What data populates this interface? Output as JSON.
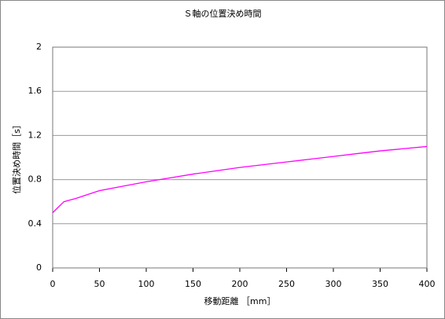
{
  "chart_data": {
    "type": "line",
    "title": "Ｓ軸の位置決め時間",
    "x_label": "移動距離 ［mm］",
    "y_label": "位置決め時間［s］",
    "x": [
      0,
      12,
      25,
      50,
      75,
      100,
      125,
      150,
      175,
      200,
      225,
      250,
      275,
      300,
      325,
      350,
      375,
      400
    ],
    "series": [
      {
        "color": "#ff00ff",
        "values": [
          0.5,
          0.6,
          0.63,
          0.7,
          0.74,
          0.78,
          0.815,
          0.85,
          0.88,
          0.91,
          0.935,
          0.96,
          0.985,
          1.01,
          1.035,
          1.06,
          1.08,
          1.1
        ]
      }
    ],
    "xlim": [
      0,
      400
    ],
    "xticks": [
      0,
      50,
      100,
      150,
      200,
      250,
      300,
      350,
      400
    ],
    "ylim": [
      0,
      2
    ],
    "yticks": [
      0,
      0.4,
      0.8,
      1.2,
      1.6,
      2
    ],
    "grid": true
  }
}
